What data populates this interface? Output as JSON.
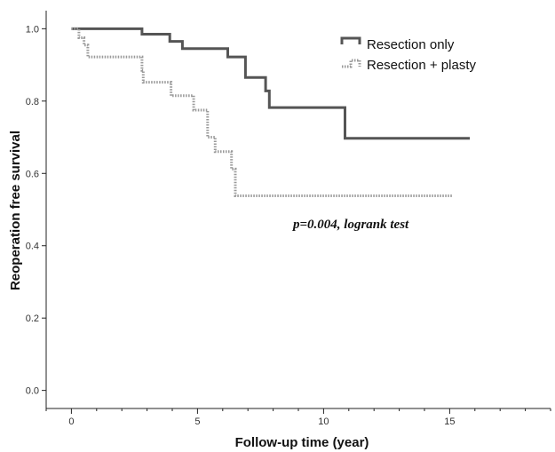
{
  "chart_data": {
    "type": "line",
    "subtype": "kaplan-meier-step",
    "xlabel": "Follow-up time (year)",
    "ylabel": "Reoperation free survival",
    "xlim": [
      -1,
      19
    ],
    "ylim": [
      -0.05,
      1.05
    ],
    "xticks": [
      0,
      5,
      10,
      15
    ],
    "xminor_step": 1,
    "yticks": [
      0.0,
      0.2,
      0.4,
      0.6,
      0.8,
      1.0
    ],
    "yticklabels": [
      "0.0",
      "0.2",
      "0.4",
      "0.6",
      "0.8",
      "1.0"
    ],
    "grid": false,
    "legend_position": "top-right",
    "annotation": "p=0.004, logrank test",
    "series": [
      {
        "name": "Resection only",
        "color": "#555555",
        "line_style": "solid",
        "steps": [
          [
            0.0,
            1.0
          ],
          [
            2.8,
            0.985
          ],
          [
            3.9,
            0.965
          ],
          [
            4.4,
            0.945
          ],
          [
            6.2,
            0.922
          ],
          [
            6.9,
            0.865
          ],
          [
            7.7,
            0.828
          ],
          [
            7.85,
            0.782
          ],
          [
            10.85,
            0.697
          ],
          [
            15.8,
            0.697
          ]
        ]
      },
      {
        "name": "Resection + plasty",
        "color": "#999999",
        "line_style": "dotted",
        "steps": [
          [
            0.0,
            1.0
          ],
          [
            0.3,
            0.975
          ],
          [
            0.5,
            0.955
          ],
          [
            0.65,
            0.922
          ],
          [
            2.8,
            0.885
          ],
          [
            2.85,
            0.852
          ],
          [
            3.95,
            0.815
          ],
          [
            4.85,
            0.775
          ],
          [
            5.4,
            0.7
          ],
          [
            5.7,
            0.66
          ],
          [
            6.35,
            0.612
          ],
          [
            6.5,
            0.538
          ],
          [
            15.1,
            0.538
          ]
        ]
      }
    ]
  }
}
